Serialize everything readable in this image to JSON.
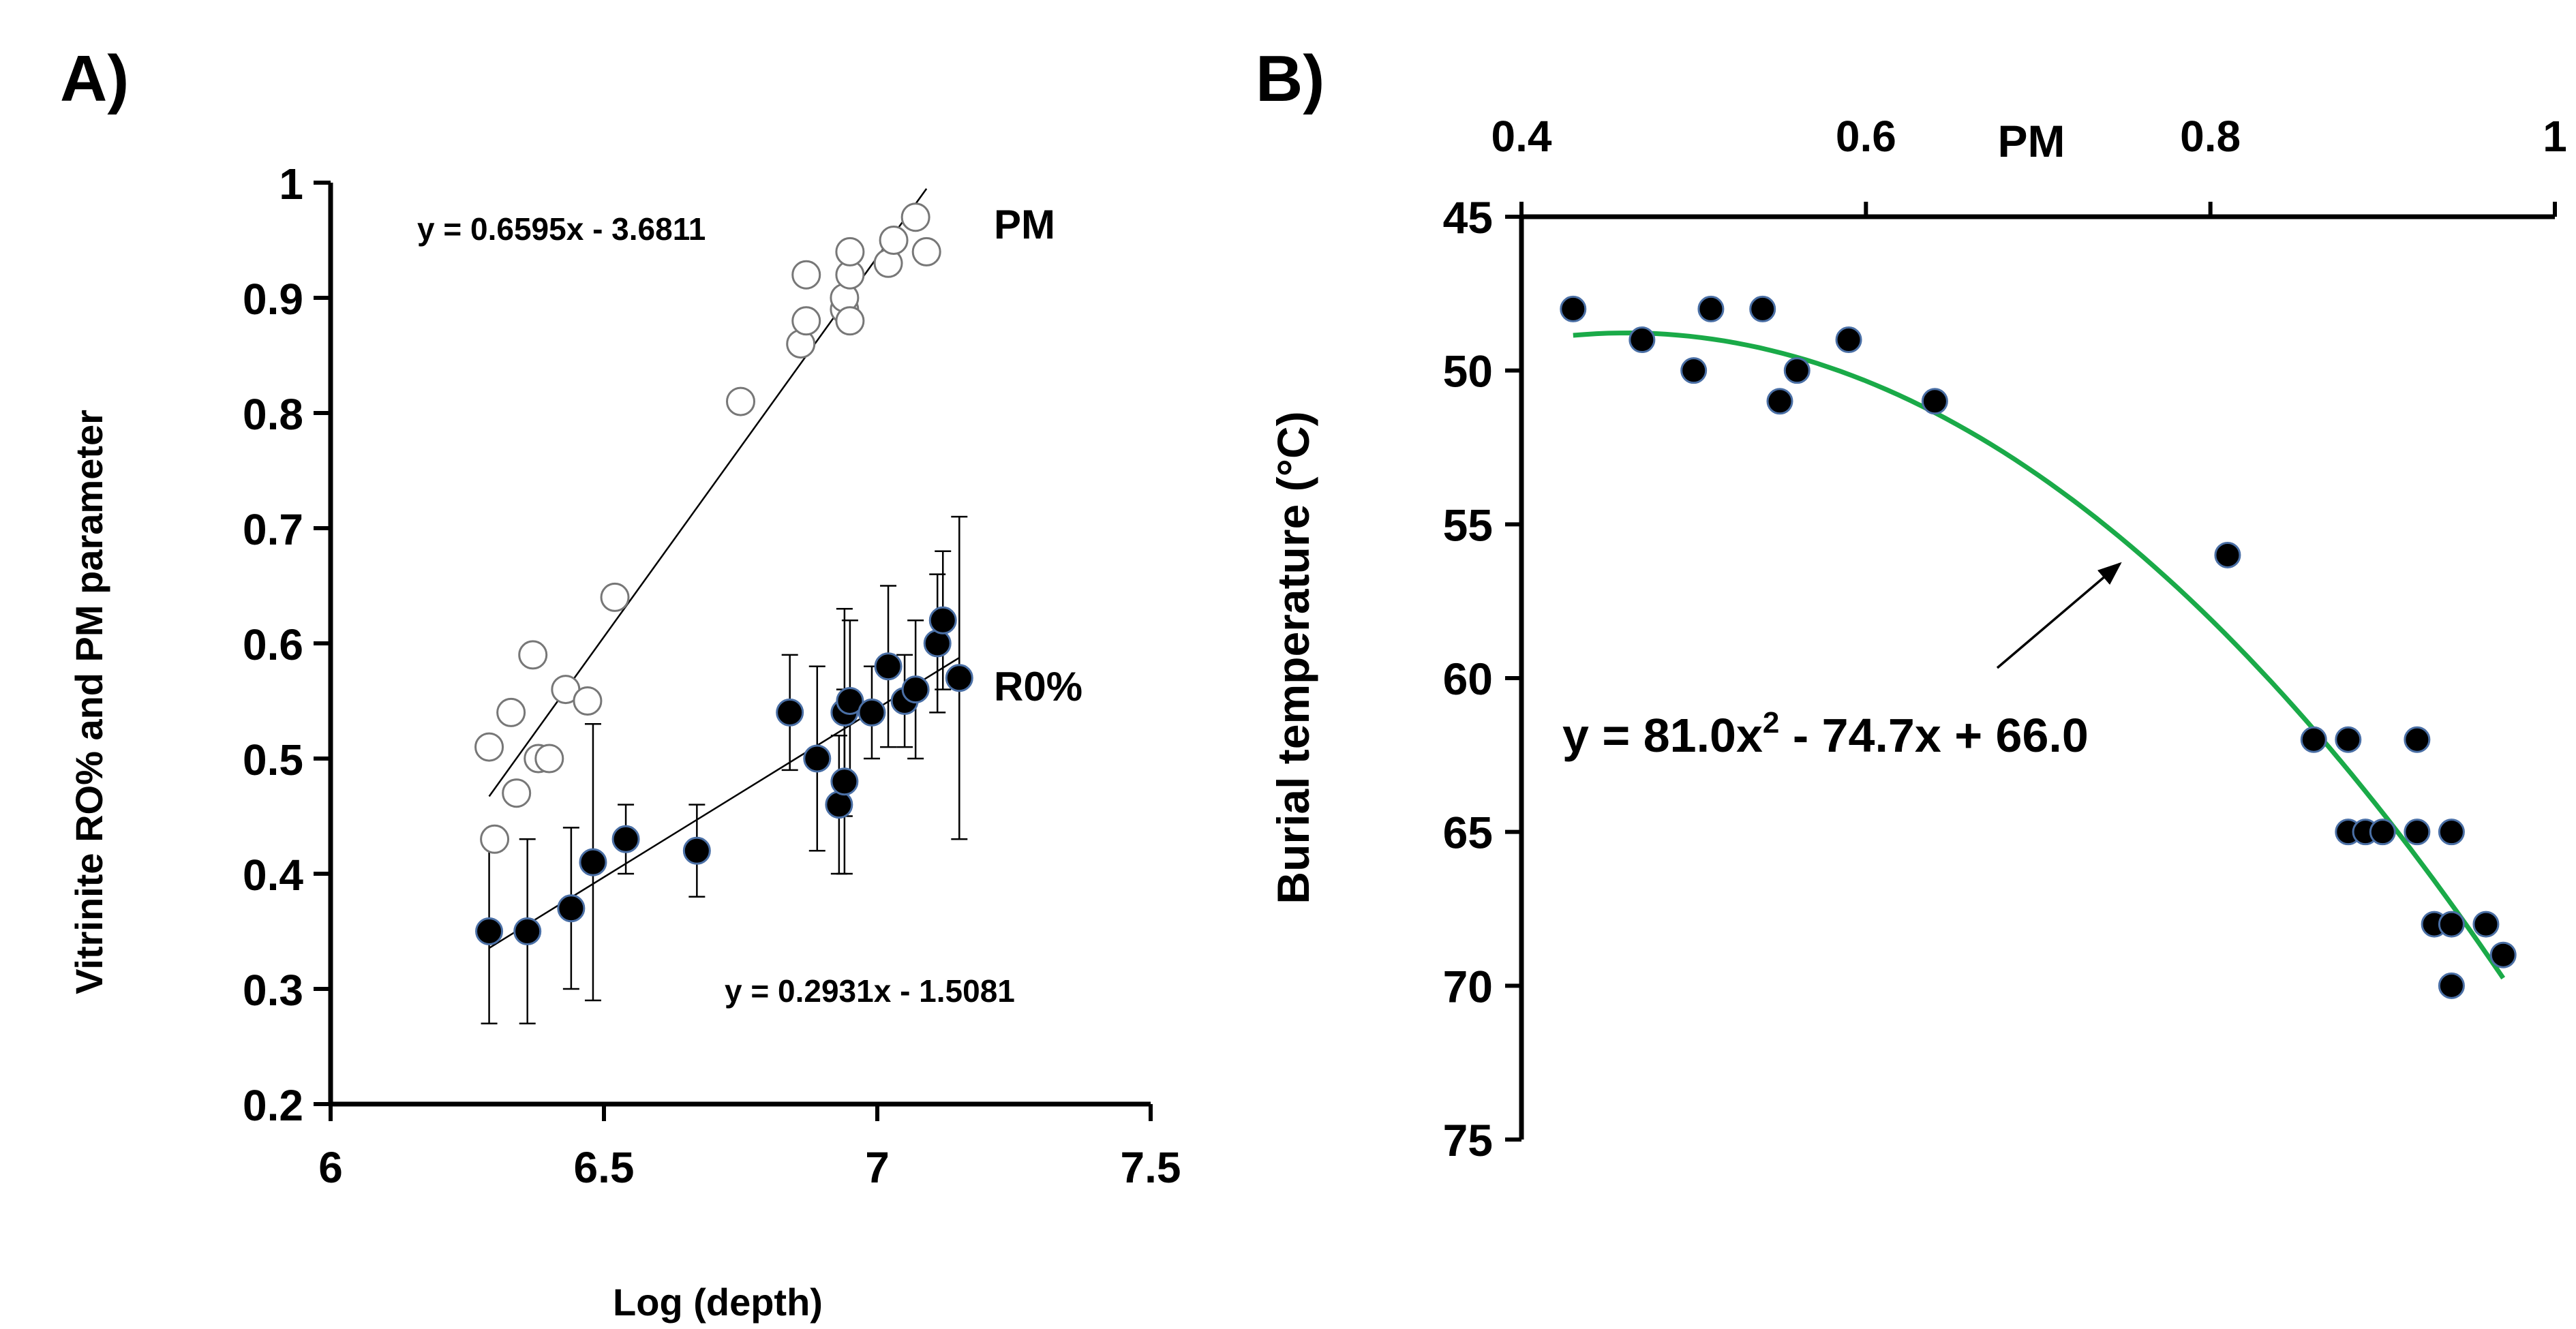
{
  "chart_data": [
    {
      "panel_label": "A)",
      "type": "scatter",
      "xlabel": "Log (depth)",
      "ylabel": "Vitrinite RO% and PM parameter",
      "xlim": [
        6,
        7.5
      ],
      "ylim": [
        0.2,
        1
      ],
      "x_ticks": [
        "6",
        "6.5",
        "7",
        "7.5"
      ],
      "y_ticks": [
        "0.2",
        "0.3",
        "0.4",
        "0.5",
        "0.6",
        "0.7",
        "0.8",
        "0.9",
        "1"
      ],
      "series": [
        {
          "name": "PM",
          "marker": "open-circle",
          "equation": "y = 0.6595x - 3.6811",
          "trend_x_range": [
            6.29,
            7.09
          ],
          "points": [
            [
              6.29,
              0.51
            ],
            [
              6.3,
              0.43
            ],
            [
              6.33,
              0.54
            ],
            [
              6.34,
              0.47
            ],
            [
              6.37,
              0.59
            ],
            [
              6.38,
              0.5
            ],
            [
              6.4,
              0.5
            ],
            [
              6.43,
              0.56
            ],
            [
              6.47,
              0.55
            ],
            [
              6.52,
              0.64
            ],
            [
              6.75,
              0.81
            ],
            [
              6.86,
              0.86
            ],
            [
              6.87,
              0.88
            ],
            [
              6.87,
              0.92
            ],
            [
              6.94,
              0.89
            ],
            [
              6.94,
              0.9
            ],
            [
              6.95,
              0.88
            ],
            [
              6.95,
              0.92
            ],
            [
              6.95,
              0.94
            ],
            [
              7.02,
              0.93
            ],
            [
              7.03,
              0.95
            ],
            [
              7.07,
              0.97
            ],
            [
              7.09,
              0.94
            ]
          ]
        },
        {
          "name": "R0%",
          "marker": "filled-circle",
          "equation": "y = 0.2931x - 1.5081",
          "trend_x_range": [
            6.29,
            7.15
          ],
          "points": [
            [
              6.29,
              0.35,
              0.08
            ],
            [
              6.36,
              0.35,
              0.08
            ],
            [
              6.44,
              0.37,
              0.07
            ],
            [
              6.48,
              0.41,
              0.12
            ],
            [
              6.54,
              0.43,
              0.03
            ],
            [
              6.67,
              0.42,
              0.04
            ],
            [
              6.84,
              0.54,
              0.05
            ],
            [
              6.89,
              0.5,
              0.08
            ],
            [
              6.93,
              0.46,
              0.06
            ],
            [
              6.94,
              0.48,
              0.08
            ],
            [
              6.94,
              0.54,
              0.09
            ],
            [
              6.95,
              0.55,
              0.07
            ],
            [
              6.99,
              0.54,
              0.04
            ],
            [
              7.02,
              0.58,
              0.07
            ],
            [
              7.05,
              0.55,
              0.04
            ],
            [
              7.07,
              0.56,
              0.06
            ],
            [
              7.11,
              0.6,
              0.06
            ],
            [
              7.12,
              0.62,
              0.06
            ],
            [
              7.15,
              0.57,
              0.14
            ]
          ]
        }
      ]
    },
    {
      "panel_label": "B)",
      "type": "scatter",
      "xlabel": "PM",
      "ylabel": "Burial temperature (°C)",
      "xlim": [
        0.4,
        1
      ],
      "ylim": [
        45,
        75
      ],
      "y_inverted": true,
      "x_ticks": [
        "0.4",
        "0.6",
        "0.8",
        "1"
      ],
      "y_ticks": [
        "45",
        "50",
        "55",
        "60",
        "65",
        "70",
        "75"
      ],
      "equation_main": "y = 81.0x",
      "equation_sup": "2",
      "equation_rest": " - 74.7x + 66.0",
      "fit": {
        "a": 81.0,
        "b": -74.7,
        "c": 66.0,
        "x_range": [
          0.43,
          0.97
        ]
      },
      "curve_color": "#1aaa48",
      "points": [
        [
          0.43,
          48
        ],
        [
          0.47,
          49
        ],
        [
          0.5,
          50
        ],
        [
          0.51,
          48
        ],
        [
          0.54,
          48
        ],
        [
          0.55,
          51
        ],
        [
          0.56,
          50
        ],
        [
          0.59,
          49
        ],
        [
          0.64,
          51
        ],
        [
          0.81,
          56
        ],
        [
          0.86,
          62
        ],
        [
          0.88,
          62
        ],
        [
          0.88,
          65
        ],
        [
          0.89,
          65
        ],
        [
          0.9,
          65
        ],
        [
          0.92,
          62
        ],
        [
          0.92,
          65
        ],
        [
          0.93,
          68
        ],
        [
          0.94,
          68
        ],
        [
          0.94,
          70
        ],
        [
          0.94,
          65
        ],
        [
          0.96,
          68
        ],
        [
          0.97,
          69
        ]
      ]
    }
  ]
}
